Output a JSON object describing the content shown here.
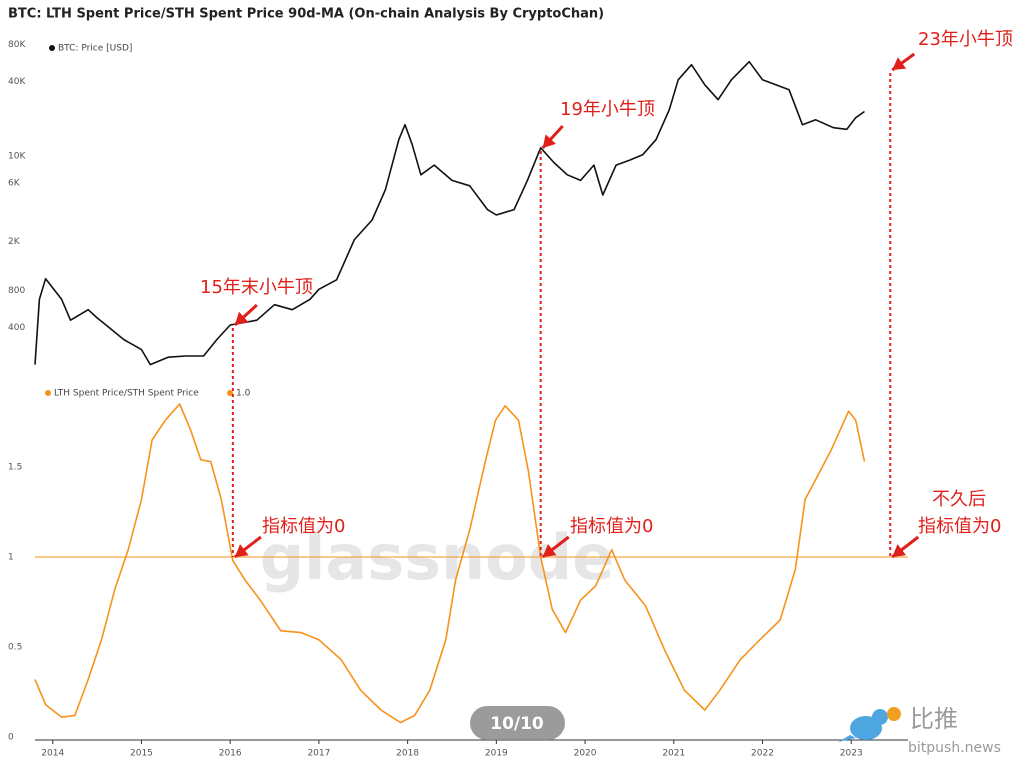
{
  "title": "BTC: LTH Spent Price/STH Spent Price 90d-MA (On-chain Analysis By CryptoChan)",
  "watermark": "glassnode",
  "page_indicator": "10/10",
  "logo": {
    "name": "比推",
    "url": "bitpush.news"
  },
  "chart_data": [
    {
      "type": "line",
      "log_scale": true,
      "xlim": [
        2013.8,
        2023.64
      ],
      "ylim": [
        150,
        96000
      ],
      "yticks": [
        {
          "value": 400,
          "label": "400"
        },
        {
          "value": 800,
          "label": "800"
        },
        {
          "value": 2000,
          "label": "2K"
        },
        {
          "value": 6000,
          "label": "6K"
        },
        {
          "value": 10000,
          "label": "10K"
        },
        {
          "value": 40000,
          "label": "40K"
        },
        {
          "value": 80000,
          "label": "80K"
        }
      ],
      "x": [
        2013.8,
        2013.85,
        2013.92,
        2014.1,
        2014.2,
        2014.4,
        2014.5,
        2014.6,
        2014.8,
        2015.0,
        2015.1,
        2015.3,
        2015.5,
        2015.7,
        2015.85,
        2016.0,
        2016.3,
        2016.5,
        2016.7,
        2016.9,
        2017.0,
        2017.2,
        2017.4,
        2017.6,
        2017.75,
        2017.9,
        2017.97,
        2018.05,
        2018.15,
        2018.3,
        2018.5,
        2018.7,
        2018.9,
        2019.0,
        2019.2,
        2019.35,
        2019.5,
        2019.65,
        2019.8,
        2019.95,
        2020.1,
        2020.2,
        2020.35,
        2020.5,
        2020.65,
        2020.8,
        2020.95,
        2021.05,
        2021.2,
        2021.35,
        2021.5,
        2021.65,
        2021.85,
        2022.0,
        2022.15,
        2022.3,
        2022.45,
        2022.6,
        2022.8,
        2022.95,
        2023.05,
        2023.15
      ],
      "series": [
        {
          "name": "BTC: Price [USD]",
          "color": "#111111",
          "values": [
            200,
            680,
            1000,
            680,
            460,
            560,
            480,
            420,
            320,
            265,
            200,
            230,
            235,
            235,
            320,
            420,
            460,
            615,
            560,
            680,
            820,
            980,
            2080,
            3000,
            5300,
            13500,
            17900,
            12400,
            7000,
            8400,
            6300,
            5700,
            3650,
            3300,
            3650,
            6300,
            11600,
            8800,
            7000,
            6300,
            8400,
            4800,
            8400,
            9200,
            10200,
            13500,
            23700,
            41500,
            55000,
            37800,
            28600,
            41500,
            58200,
            41500,
            37800,
            34400,
            17900,
            19600,
            16900,
            16400,
            20400,
            22900
          ]
        }
      ],
      "annotations": [
        {
          "lines": [
            "15年末小牛顶"
          ],
          "x": 2016.03
        },
        {
          "lines": [
            "19年小牛顶"
          ],
          "x": 2019.5
        },
        {
          "lines": [
            "23年小牛顶"
          ],
          "x": 2023.44
        }
      ]
    },
    {
      "type": "line",
      "xlim": [
        2013.8,
        2023.64
      ],
      "ylim": [
        0,
        1.95
      ],
      "yticks": [
        0,
        0.5,
        1,
        1.5
      ],
      "xticks": [
        2014,
        2015,
        2016,
        2017,
        2018,
        2019,
        2020,
        2021,
        2022,
        2023
      ],
      "x": [
        2013.8,
        2013.92,
        2014.1,
        2014.25,
        2014.4,
        2014.55,
        2014.7,
        2014.85,
        2015.0,
        2015.12,
        2015.27,
        2015.43,
        2015.55,
        2015.67,
        2015.78,
        2015.9,
        2016.03,
        2016.17,
        2016.34,
        2016.57,
        2016.8,
        2017.0,
        2017.25,
        2017.47,
        2017.7,
        2017.92,
        2018.08,
        2018.25,
        2018.43,
        2018.54,
        2018.7,
        2018.88,
        2018.99,
        2019.1,
        2019.25,
        2019.36,
        2019.5,
        2019.63,
        2019.78,
        2019.95,
        2020.12,
        2020.3,
        2020.45,
        2020.68,
        2020.9,
        2021.12,
        2021.35,
        2021.52,
        2021.75,
        2021.97,
        2022.2,
        2022.37,
        2022.48,
        2022.6,
        2022.77,
        2022.97,
        2023.05,
        2023.15
      ],
      "series": [
        {
          "name": "LTH Spent Price/STH Spent Price",
          "color": "#f7931a",
          "values": [
            0.32,
            0.18,
            0.11,
            0.12,
            0.32,
            0.54,
            0.82,
            1.04,
            1.32,
            1.65,
            1.76,
            1.85,
            1.71,
            1.54,
            1.53,
            1.32,
            0.98,
            0.87,
            0.76,
            0.59,
            0.58,
            0.54,
            0.43,
            0.26,
            0.15,
            0.08,
            0.12,
            0.26,
            0.54,
            0.87,
            1.15,
            1.54,
            1.76,
            1.84,
            1.76,
            1.48,
            1.0,
            0.71,
            0.58,
            0.76,
            0.84,
            1.04,
            0.87,
            0.73,
            0.48,
            0.26,
            0.15,
            0.26,
            0.43,
            0.54,
            0.65,
            0.93,
            1.32,
            1.43,
            1.59,
            1.81,
            1.76,
            1.53
          ]
        }
      ],
      "reference_lines": [
        {
          "name": "1.0",
          "value": 1,
          "color": "#f7931a"
        }
      ],
      "annotations": [
        {
          "lines": [
            "指标值为0"
          ],
          "x": 2016.03
        },
        {
          "lines": [
            "指标值为0"
          ],
          "x": 2019.5
        },
        {
          "lines": [
            "不久后",
            "指标值为0"
          ],
          "x": 2023.44
        }
      ]
    }
  ]
}
